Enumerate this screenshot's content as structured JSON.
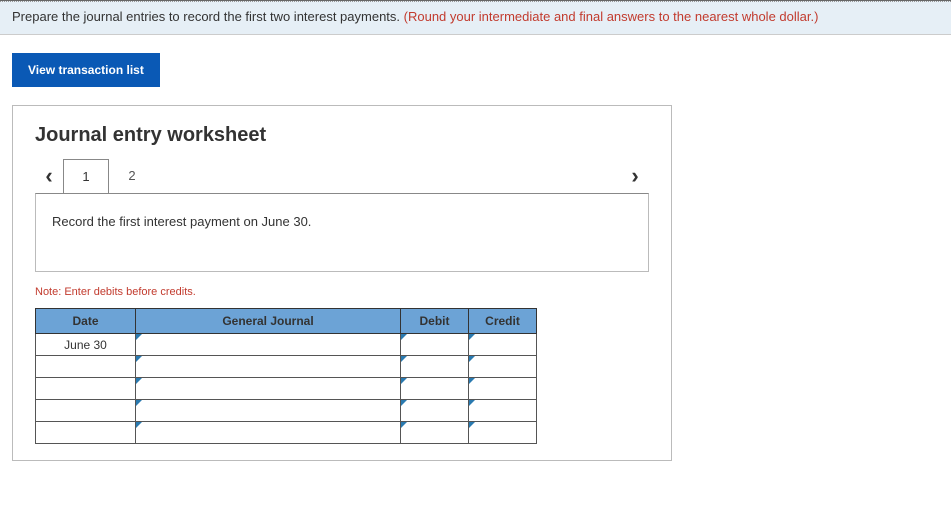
{
  "prompt": {
    "main": "Prepare the journal entries to record the first two interest payments. ",
    "note": "(Round your intermediate and final answers to the nearest whole dollar.)"
  },
  "view_button_label": "View transaction list",
  "worksheet": {
    "title": "Journal entry worksheet",
    "tabs": [
      "1",
      "2"
    ],
    "active_tab_index": 0,
    "instruction": "Record the first interest payment on June 30.",
    "note": "Note: Enter debits before credits.",
    "headers": {
      "date": "Date",
      "gj": "General Journal",
      "debit": "Debit",
      "credit": "Credit"
    },
    "rows": [
      {
        "date": "June 30",
        "gj": "",
        "debit": "",
        "credit": ""
      },
      {
        "date": "",
        "gj": "",
        "debit": "",
        "credit": ""
      },
      {
        "date": "",
        "gj": "",
        "debit": "",
        "credit": ""
      },
      {
        "date": "",
        "gj": "",
        "debit": "",
        "credit": ""
      },
      {
        "date": "",
        "gj": "",
        "debit": "",
        "credit": ""
      }
    ]
  },
  "colors": {
    "prompt_bg": "#e6eff6",
    "button_bg": "#0a59b5",
    "header_bg": "#6ca3d6",
    "note_color": "#c23b2e"
  }
}
